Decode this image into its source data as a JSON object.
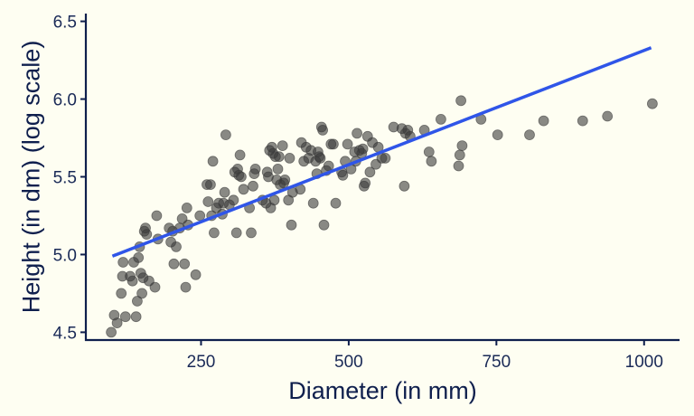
{
  "chart_data": {
    "type": "scatter",
    "title": "",
    "xlabel": "Diameter (in mm)",
    "ylabel": "Height (in dm) (log scale)",
    "xlim": [
      55,
      1060
    ],
    "ylim": [
      4.45,
      6.55
    ],
    "xticks": [
      250,
      500,
      750,
      1000
    ],
    "yticks": [
      4.5,
      5.0,
      5.5,
      6.0,
      6.5
    ],
    "xtick_labels": [
      "250",
      "500",
      "750",
      "1000"
    ],
    "ytick_labels": [
      "4.5",
      "5.0",
      "5.5",
      "6.0",
      "6.5"
    ],
    "grid": false,
    "legend": "none",
    "point_color": "#3a3a3a",
    "point_opacity": 0.6,
    "line_color": "#2f55e8",
    "axis_color": "#0f1f4d",
    "background": "#fefef2",
    "series": [
      {
        "type": "scatter",
        "points": [
          [
            98,
            4.5
          ],
          [
            103,
            4.61
          ],
          [
            108,
            4.56
          ],
          [
            115,
            4.75
          ],
          [
            117,
            4.86
          ],
          [
            118,
            4.95
          ],
          [
            122,
            4.6
          ],
          [
            130,
            4.86
          ],
          [
            134,
            4.83
          ],
          [
            136,
            4.95
          ],
          [
            140,
            4.6
          ],
          [
            142,
            4.7
          ],
          [
            144,
            4.98
          ],
          [
            146,
            5.05
          ],
          [
            148,
            4.88
          ],
          [
            150,
            4.75
          ],
          [
            152,
            4.85
          ],
          [
            154,
            5.15
          ],
          [
            156,
            5.17
          ],
          [
            158,
            5.13
          ],
          [
            162,
            4.83
          ],
          [
            172,
            4.79
          ],
          [
            175,
            5.25
          ],
          [
            177,
            5.1
          ],
          [
            196,
            5.17
          ],
          [
            199,
            5.08
          ],
          [
            202,
            5.15
          ],
          [
            204,
            4.94
          ],
          [
            208,
            5.05
          ],
          [
            214,
            5.17
          ],
          [
            218,
            5.23
          ],
          [
            222,
            4.94
          ],
          [
            224,
            4.79
          ],
          [
            226,
            5.3
          ],
          [
            228,
            5.19
          ],
          [
            241,
            4.87
          ],
          [
            248,
            5.25
          ],
          [
            260,
            5.45
          ],
          [
            262,
            5.34
          ],
          [
            266,
            5.45
          ],
          [
            268,
            5.25
          ],
          [
            270,
            5.6
          ],
          [
            272,
            5.14
          ],
          [
            276,
            5.3
          ],
          [
            280,
            5.33
          ],
          [
            286,
            5.26
          ],
          [
            288,
            5.33
          ],
          [
            290,
            5.4
          ],
          [
            292,
            5.77
          ],
          [
            298,
            5.32
          ],
          [
            305,
            5.35
          ],
          [
            307,
            5.53
          ],
          [
            310,
            5.14
          ],
          [
            312,
            5.55
          ],
          [
            314,
            5.51
          ],
          [
            316,
            5.64
          ],
          [
            318,
            5.5
          ],
          [
            322,
            5.42
          ],
          [
            332,
            5.3
          ],
          [
            335,
            5.14
          ],
          [
            338,
            5.44
          ],
          [
            340,
            5.52
          ],
          [
            342,
            5.55
          ],
          [
            354,
            5.35
          ],
          [
            360,
            5.33
          ],
          [
            362,
            5.53
          ],
          [
            364,
            5.5
          ],
          [
            366,
            5.67
          ],
          [
            368,
            5.3
          ],
          [
            370,
            5.69
          ],
          [
            372,
            5.65
          ],
          [
            374,
            5.35
          ],
          [
            376,
            5.63
          ],
          [
            378,
            5.48
          ],
          [
            380,
            5.55
          ],
          [
            382,
            5.63
          ],
          [
            384,
            5.45
          ],
          [
            388,
            5.7
          ],
          [
            390,
            5.46
          ],
          [
            392,
            5.48
          ],
          [
            398,
            5.35
          ],
          [
            400,
            5.62
          ],
          [
            403,
            5.19
          ],
          [
            405,
            5.4
          ],
          [
            418,
            5.42
          ],
          [
            420,
            5.72
          ],
          [
            424,
            5.6
          ],
          [
            428,
            5.69
          ],
          [
            432,
            5.62
          ],
          [
            436,
            5.67
          ],
          [
            440,
            5.33
          ],
          [
            444,
            5.6
          ],
          [
            446,
            5.52
          ],
          [
            448,
            5.66
          ],
          [
            450,
            5.63
          ],
          [
            452,
            5.62
          ],
          [
            454,
            5.82
          ],
          [
            456,
            5.8
          ],
          [
            458,
            5.19
          ],
          [
            462,
            5.54
          ],
          [
            466,
            5.57
          ],
          [
            470,
            5.71
          ],
          [
            474,
            5.71
          ],
          [
            478,
            5.33
          ],
          [
            488,
            5.53
          ],
          [
            490,
            5.51
          ],
          [
            494,
            5.6
          ],
          [
            498,
            5.71
          ],
          [
            504,
            5.55
          ],
          [
            510,
            5.66
          ],
          [
            512,
            5.6
          ],
          [
            514,
            5.78
          ],
          [
            518,
            5.67
          ],
          [
            522,
            5.65
          ],
          [
            524,
            5.68
          ],
          [
            526,
            5.44
          ],
          [
            528,
            5.46
          ],
          [
            532,
            5.76
          ],
          [
            536,
            5.53
          ],
          [
            540,
            5.72
          ],
          [
            546,
            5.58
          ],
          [
            550,
            5.69
          ],
          [
            556,
            5.62
          ],
          [
            562,
            5.62
          ],
          [
            576,
            5.82
          ],
          [
            590,
            5.81
          ],
          [
            594,
            5.44
          ],
          [
            596,
            5.78
          ],
          [
            600,
            5.8
          ],
          [
            604,
            5.76
          ],
          [
            628,
            5.8
          ],
          [
            636,
            5.66
          ],
          [
            640,
            5.6
          ],
          [
            656,
            5.87
          ],
          [
            686,
            5.57
          ],
          [
            688,
            5.64
          ],
          [
            690,
            5.99
          ],
          [
            692,
            5.7
          ],
          [
            724,
            5.87
          ],
          [
            752,
            5.77
          ],
          [
            806,
            5.77
          ],
          [
            830,
            5.86
          ],
          [
            896,
            5.86
          ],
          [
            938,
            5.89
          ],
          [
            1014,
            5.97
          ]
        ]
      },
      {
        "type": "line",
        "fit": "linear",
        "x": [
          100,
          1012
        ],
        "y": [
          4.99,
          6.33
        ]
      }
    ]
  }
}
